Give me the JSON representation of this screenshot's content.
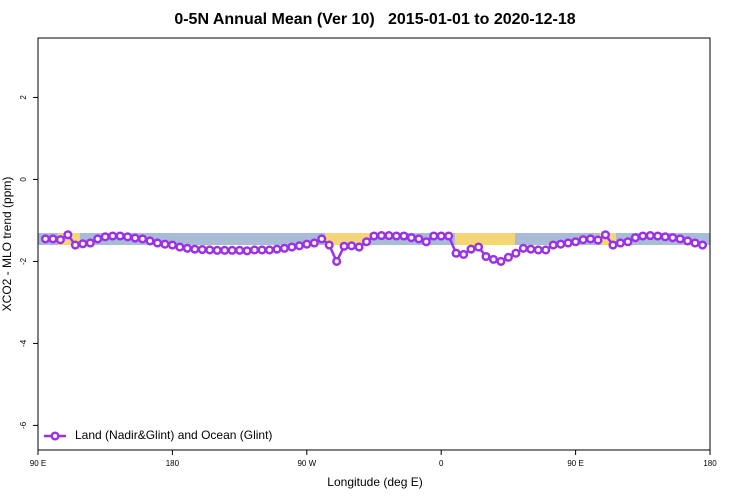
{
  "chart_data": {
    "type": "line",
    "title": "0-5N Annual Mean (Ver 10)   2015-01-01 to 2020-12-18",
    "xlabel": "Longitude (deg E)",
    "ylabel": "XCO2 - MLO trend (ppm)",
    "xlim": [
      -270,
      180
    ],
    "ylim": [
      -6.6,
      3.45
    ],
    "xticks": [
      {
        "value": -270,
        "label": "90 E"
      },
      {
        "value": -180,
        "label": "180"
      },
      {
        "value": -90,
        "label": "90 W"
      },
      0,
      {
        "value": 90,
        "label": "90 E"
      },
      {
        "value": 180,
        "label": "180"
      }
    ],
    "yticks": [
      -6,
      -4,
      -2,
      0,
      2
    ],
    "legend": "bottom-left",
    "x": [
      -265,
      -260,
      -255,
      -250,
      -245,
      -240,
      -235,
      -230,
      -225,
      -220,
      -215,
      -210,
      -205,
      -200,
      -195,
      -190,
      -185,
      -180,
      -175,
      -170,
      -165,
      -160,
      -155,
      -150,
      -145,
      -140,
      -135,
      -130,
      -125,
      -120,
      -115,
      -110,
      -105,
      -100,
      -95,
      -90,
      -85,
      -80,
      -75,
      -70,
      -65,
      -60,
      -55,
      -50,
      -45,
      -40,
      -35,
      -30,
      -25,
      -20,
      -15,
      -10,
      -5,
      0,
      5,
      10,
      15,
      20,
      25,
      30,
      35,
      40,
      45,
      50,
      55,
      60,
      65,
      70,
      75,
      80,
      85,
      90,
      95,
      100,
      105,
      110,
      115,
      120,
      125,
      130,
      135,
      140,
      145,
      150,
      155,
      160,
      165,
      170,
      175
    ],
    "series": [
      {
        "name": "Land (Nadir&Glint) and Ocean (Glint)",
        "color": "#9b30e8",
        "values": [
          -1.45,
          -1.45,
          -1.47,
          -1.35,
          -1.6,
          -1.57,
          -1.55,
          -1.45,
          -1.4,
          -1.38,
          -1.38,
          -1.4,
          -1.43,
          -1.45,
          -1.5,
          -1.55,
          -1.58,
          -1.6,
          -1.65,
          -1.68,
          -1.7,
          -1.71,
          -1.72,
          -1.73,
          -1.73,
          -1.73,
          -1.73,
          -1.74,
          -1.72,
          -1.72,
          -1.72,
          -1.7,
          -1.68,
          -1.65,
          -1.62,
          -1.58,
          -1.55,
          -1.45,
          -1.6,
          -2.0,
          -1.63,
          -1.62,
          -1.65,
          -1.52,
          -1.38,
          -1.37,
          -1.37,
          -1.38,
          -1.38,
          -1.42,
          -1.45,
          -1.52,
          -1.38,
          -1.38,
          -1.38,
          -1.8,
          -1.83,
          -1.7,
          -1.65,
          -1.88,
          -1.95,
          -2.0,
          -1.9,
          -1.8,
          -1.68,
          -1.7,
          -1.72,
          -1.72,
          -1.6,
          -1.58,
          -1.55,
          -1.52,
          -1.47,
          -1.45,
          -1.48,
          -1.35,
          -1.6,
          -1.55,
          -1.52,
          -1.42,
          -1.38,
          -1.37,
          -1.38,
          -1.4,
          -1.42,
          -1.45,
          -1.5,
          -1.55,
          -1.6
        ]
      }
    ]
  }
}
